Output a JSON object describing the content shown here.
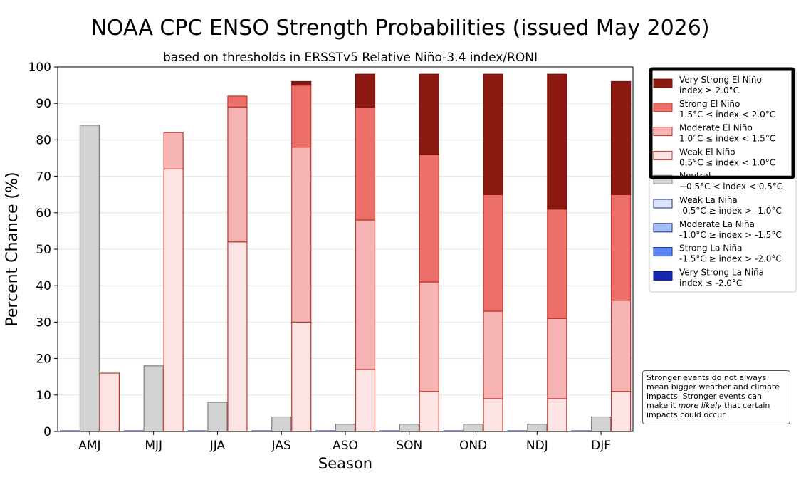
{
  "chart_data": {
    "type": "bar",
    "title": "NOAA CPC ENSO Strength Probabilities (issued May 2026)",
    "subtitle": "based on thresholds in ERSSTv5 Relative Niño-3.4 index/RONI",
    "xlabel": "Season",
    "ylabel": "Percent Chance (%)",
    "ylim": [
      0,
      100
    ],
    "yticks": [
      0,
      10,
      20,
      30,
      40,
      50,
      60,
      70,
      80,
      90,
      100
    ],
    "grid": true,
    "categories": [
      "AMJ",
      "MJJ",
      "JJA",
      "JAS",
      "ASO",
      "SON",
      "OND",
      "NDJ",
      "DJF"
    ],
    "neutral": {
      "name": "Neutral",
      "range": "−0.5°C < index < 0.5°C",
      "color": "#d3d3d3",
      "edge": "#808080",
      "values": [
        84,
        18,
        8,
        4,
        2,
        2,
        2,
        2,
        4
      ]
    },
    "el_nino_series": [
      {
        "name": "Weak El Niño",
        "range": "0.5°C ≤ index < 1.0°C",
        "color": "#fde4e4",
        "edge": "#c0392b",
        "values": [
          16,
          72,
          52,
          30,
          17,
          11,
          9,
          9,
          11
        ]
      },
      {
        "name": "Moderate El Niño",
        "range": "1.0°C ≤ index < 1.5°C",
        "color": "#f5b3b3",
        "edge": "#c0392b",
        "values": [
          0,
          10,
          37,
          48,
          41,
          30,
          24,
          22,
          25
        ]
      },
      {
        "name": "Strong El Niño",
        "range": "1.5°C ≤ index < 2.0°C",
        "color": "#ec6f6a",
        "edge": "#c0392b",
        "values": [
          0,
          0,
          3,
          17,
          31,
          35,
          32,
          30,
          29
        ]
      },
      {
        "name": "Very Strong El Niño",
        "range": "index ≥ 2.0°C",
        "color": "#8c1a12",
        "edge": "#7a1008",
        "values": [
          0,
          0,
          0,
          1,
          9,
          22,
          33,
          37,
          31
        ]
      }
    ],
    "la_nina_series": [
      {
        "name": "Weak La Niña",
        "range": "-0.5°C ≥ index > -1.0°C",
        "color": "#dde6fb",
        "edge": "#1a2a8a",
        "values": [
          0,
          0,
          0,
          0,
          0,
          0,
          0,
          0,
          0
        ]
      },
      {
        "name": "Moderate La Niña",
        "range": "-1.0°C ≥ index > -1.5°C",
        "color": "#a8bff5",
        "edge": "#1a2a8a",
        "values": [
          0,
          0,
          0,
          0,
          0,
          0,
          0,
          0,
          0
        ]
      },
      {
        "name": "Strong La Niña",
        "range": "-1.5°C ≥ index > -2.0°C",
        "color": "#5a86f0",
        "edge": "#1a2a8a",
        "values": [
          0,
          0,
          0,
          0,
          0,
          0,
          0,
          0,
          0
        ]
      },
      {
        "name": "Very Strong La Niña",
        "range": "index ≤ -2.0°C",
        "color": "#1428b4",
        "edge": "#0a1670",
        "values": [
          0,
          0,
          0,
          0,
          0,
          0,
          0,
          0,
          0
        ]
      }
    ],
    "legend_order": [
      "Very Strong El Niño",
      "Strong El Niño",
      "Moderate El Niño",
      "Weak El Niño",
      "Neutral",
      "Weak La Niña",
      "Moderate La Niña",
      "Strong La Niña",
      "Very Strong La Niña"
    ],
    "legend_highlight": [
      "Very Strong El Niño",
      "Strong El Niño",
      "Moderate El Niño",
      "Weak El Niño"
    ],
    "legend_placement": "right"
  },
  "note": {
    "line1": "Stronger events do not always",
    "line2": "mean bigger weather and climate",
    "line3": "impacts. Stronger events can",
    "line4_pre": "make it ",
    "line4_em": "more likely",
    "line4_post": " that certain",
    "line5": "impacts could occur."
  }
}
